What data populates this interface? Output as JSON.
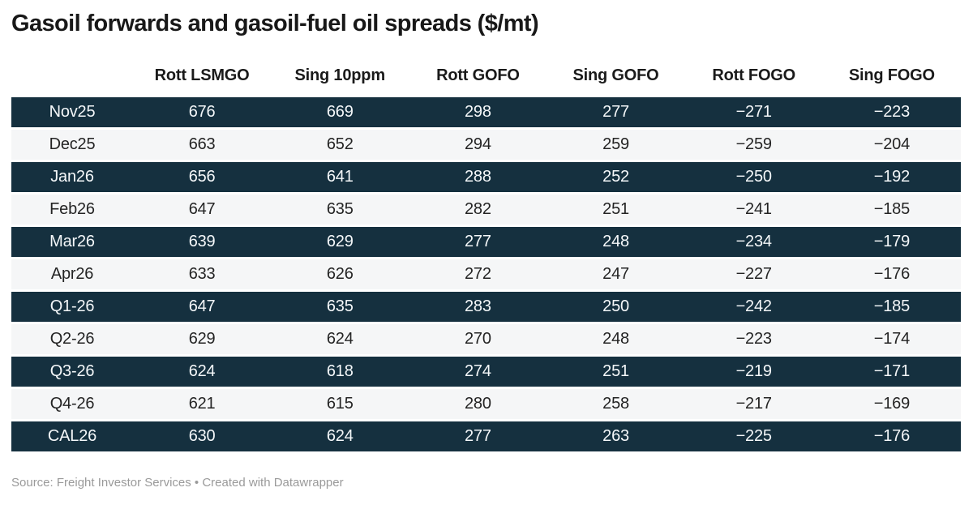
{
  "title": "Gasoil forwards and gasoil-fuel oil spreads ($/mt)",
  "chart_data": {
    "type": "table",
    "title": "Gasoil forwards and gasoil-fuel oil spreads ($/mt)",
    "columns": [
      "",
      "Rott LSMGO",
      "Sing 10ppm",
      "Rott GOFO",
      "Sing GOFO",
      "Rott FOGO",
      "Sing FOGO"
    ],
    "rows": [
      {
        "label": "Nov25",
        "values": [
          676,
          669,
          298,
          277,
          -271,
          -223
        ]
      },
      {
        "label": "Dec25",
        "values": [
          663,
          652,
          294,
          259,
          -259,
          -204
        ]
      },
      {
        "label": "Jan26",
        "values": [
          656,
          641,
          288,
          252,
          -250,
          -192
        ]
      },
      {
        "label": "Feb26",
        "values": [
          647,
          635,
          282,
          251,
          -241,
          -185
        ]
      },
      {
        "label": "Mar26",
        "values": [
          639,
          629,
          277,
          248,
          -234,
          -179
        ]
      },
      {
        "label": "Apr26",
        "values": [
          633,
          626,
          272,
          247,
          -227,
          -176
        ]
      },
      {
        "label": "Q1-26",
        "values": [
          647,
          635,
          283,
          250,
          -242,
          -185
        ]
      },
      {
        "label": "Q2-26",
        "values": [
          629,
          624,
          270,
          248,
          -223,
          -174
        ]
      },
      {
        "label": "Q3-26",
        "values": [
          624,
          618,
          274,
          251,
          -219,
          -171
        ]
      },
      {
        "label": "Q4-26",
        "values": [
          621,
          615,
          280,
          258,
          -217,
          -169
        ]
      },
      {
        "label": "CAL26",
        "values": [
          630,
          624,
          277,
          263,
          -225,
          -176
        ]
      }
    ],
    "layout_hints": {
      "striping": "alternating row bands starting dark at first row",
      "alignment": "all columns center-aligned",
      "grid": "off"
    }
  },
  "footer": {
    "text": "Source: Freight Investor Services • Created with Datawrapper"
  },
  "colors": {
    "page_bg": "#ffffff",
    "title_text": "#181818",
    "header_text": "#1a1a1a",
    "dark_row_bg": "#15303f",
    "dark_row_text": "#f4f7f9",
    "light_row_bg": "#f5f6f7",
    "light_row_text": "#242424",
    "footer_text": "#9a9a9a"
  }
}
